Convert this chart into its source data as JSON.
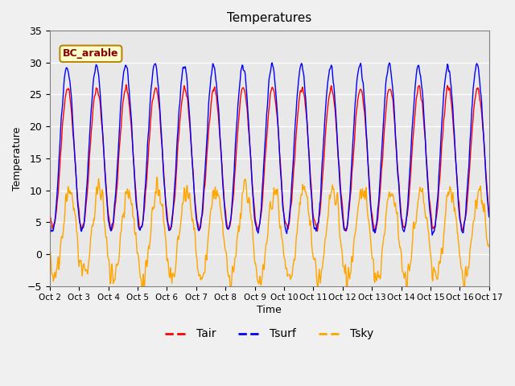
{
  "title": "Temperatures",
  "xlabel": "Time",
  "ylabel": "Temperature",
  "ylim": [
    -5,
    35
  ],
  "annotation": "BC_arable",
  "legend_labels": [
    "Tair",
    "Tsurf",
    "Tsky"
  ],
  "line_colors": [
    "red",
    "blue",
    "orange"
  ],
  "bg_color": "#e8e8e8",
  "x_ticks": [
    2,
    3,
    4,
    5,
    6,
    7,
    8,
    9,
    10,
    11,
    12,
    13,
    14,
    15,
    16,
    17
  ],
  "x_tick_labels": [
    "Oct 2",
    "Oct 3",
    "Oct 4",
    "Oct 5",
    "Oct 6",
    "Oct 7",
    "Oct 8",
    "Oct 9",
    "Oct 10",
    "Oct 11",
    "Oct 12",
    "Oct 13",
    "Oct 14",
    "Oct 15",
    "Oct 16",
    "Oct 17"
  ]
}
